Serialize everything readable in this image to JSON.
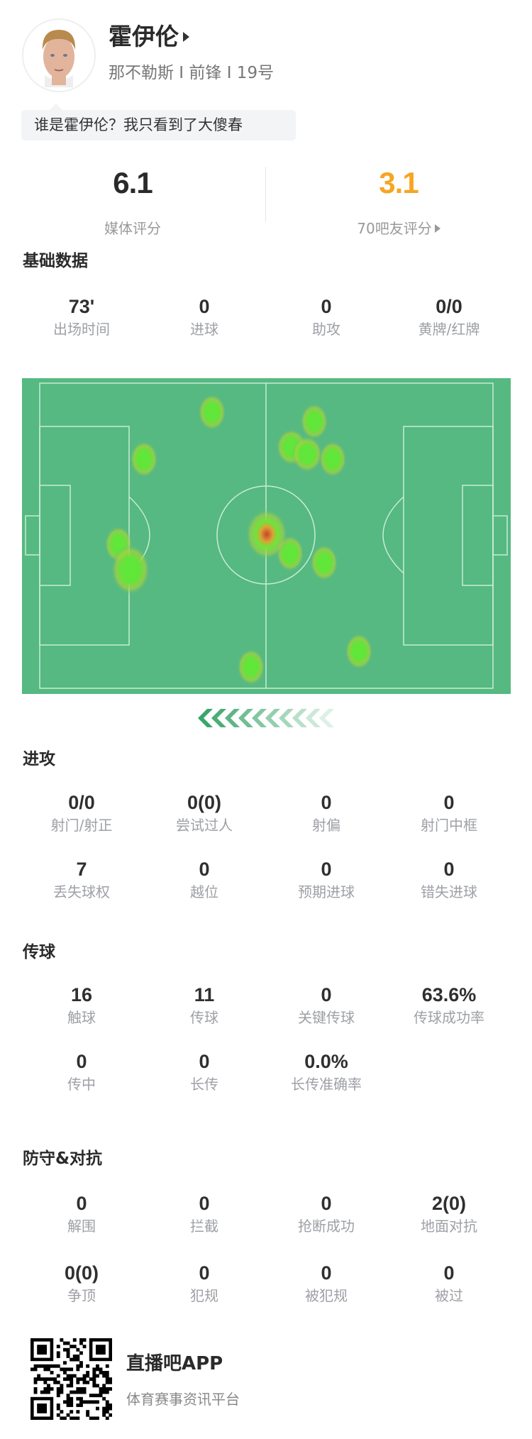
{
  "player": {
    "name": "霍伊伦",
    "info": "那不勒斯 I 前锋 I 19号",
    "comment": "谁是霍伊伦？我只看到了大傻春"
  },
  "ratings": {
    "media": {
      "value": "6.1",
      "label": "媒体评分",
      "color": "#2a2a2a"
    },
    "fans": {
      "value": "3.1",
      "label": "70吧友评分",
      "color": "#f5a623"
    }
  },
  "sections": [
    {
      "title": "基础数据",
      "rows": [
        [
          {
            "v": "73'",
            "l": "出场时间"
          },
          {
            "v": "0",
            "l": "进球"
          },
          {
            "v": "0",
            "l": "助攻"
          },
          {
            "v": "0/0",
            "l": "黄牌/红牌"
          }
        ]
      ]
    },
    {
      "title": "进攻",
      "rows": [
        [
          {
            "v": "0/0",
            "l": "射门/射正"
          },
          {
            "v": "0(0)",
            "l": "尝试过人"
          },
          {
            "v": "0",
            "l": "射偏"
          },
          {
            "v": "0",
            "l": "射门中框"
          }
        ],
        [
          {
            "v": "7",
            "l": "丢失球权"
          },
          {
            "v": "0",
            "l": "越位"
          },
          {
            "v": "0",
            "l": "预期进球"
          },
          {
            "v": "0",
            "l": "错失进球"
          }
        ]
      ]
    },
    {
      "title": "传球",
      "rows": [
        [
          {
            "v": "16",
            "l": "触球"
          },
          {
            "v": "11",
            "l": "传球"
          },
          {
            "v": "0",
            "l": "关键传球"
          },
          {
            "v": "63.6%",
            "l": "传球成功率"
          }
        ],
        [
          {
            "v": "0",
            "l": "传中"
          },
          {
            "v": "0",
            "l": "长传"
          },
          {
            "v": "0.0%",
            "l": "长传准确率"
          }
        ]
      ]
    },
    {
      "title": "防守&对抗",
      "rows": [
        [
          {
            "v": "0",
            "l": "解围"
          },
          {
            "v": "0",
            "l": "拦截"
          },
          {
            "v": "0",
            "l": "抢断成功"
          },
          {
            "v": "2(0)",
            "l": "地面对抗"
          }
        ],
        [
          {
            "v": "0(0)",
            "l": "争顶"
          },
          {
            "v": "0",
            "l": "犯规"
          },
          {
            "v": "0",
            "l": "被犯规"
          },
          {
            "v": "0",
            "l": "被过"
          }
        ]
      ]
    }
  ],
  "heatmap": {
    "pitch_color": "#55b981",
    "line_color": "#c8ecd5",
    "direction_icon": "chevrons-left-icon"
  },
  "footer": {
    "app_name": "直播吧APP",
    "slogan": "体育赛事资讯平台",
    "qr_icon": "qr-code-icon"
  }
}
